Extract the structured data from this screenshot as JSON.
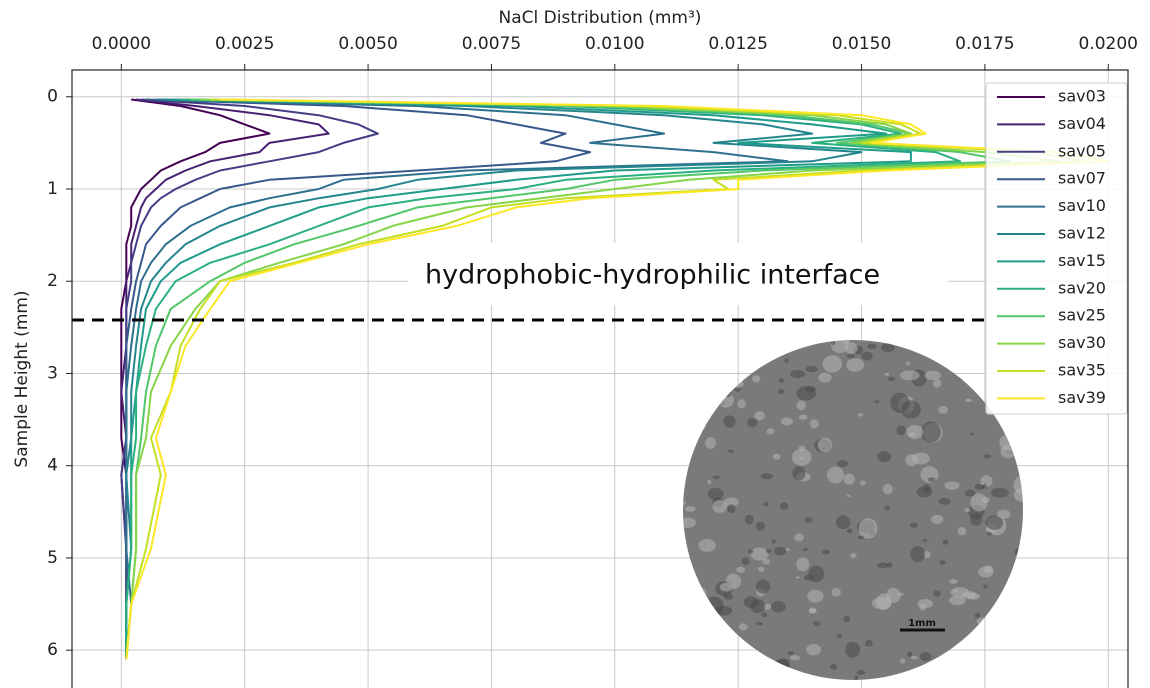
{
  "chart_data": {
    "type": "line",
    "title": "NaCl Distribution (mm³)",
    "y_label": "Sample Height (mm)",
    "y": [
      0.03,
      0.1,
      0.2,
      0.3,
      0.4,
      0.5,
      0.6,
      0.7,
      0.8,
      0.9,
      1.0,
      1.1,
      1.2,
      1.4,
      1.6,
      1.8,
      2.0,
      2.3,
      2.7,
      3.2,
      3.7,
      4.1,
      4.9,
      5.5,
      6.1
    ],
    "series": [
      {
        "name": "sav03",
        "color": "#440154",
        "values": [
          0.0002,
          0.0012,
          0.002,
          0.0025,
          0.003,
          0.002,
          0.0017,
          0.0012,
          0.0008,
          0.0006,
          0.0004,
          0.0003,
          0.0002,
          0.0002,
          0.0001,
          0.0001,
          0.0001,
          0.0,
          0.0,
          0.0,
          0.0,
          0.0001,
          0.0001,
          0.0001,
          0.0001
        ]
      },
      {
        "name": "sav04",
        "color": "#482173",
        "values": [
          0.0003,
          0.0015,
          0.003,
          0.004,
          0.0042,
          0.003,
          0.0028,
          0.0018,
          0.0013,
          0.0009,
          0.0007,
          0.0005,
          0.0004,
          0.0003,
          0.0002,
          0.0002,
          0.0001,
          0.0001,
          0.0001,
          0.0,
          0.0001,
          0.0,
          0.0001,
          0.0001,
          0.0001
        ]
      },
      {
        "name": "sav05",
        "color": "#433e85",
        "values": [
          0.0004,
          0.0025,
          0.004,
          0.0048,
          0.0052,
          0.0045,
          0.004,
          0.003,
          0.002,
          0.0015,
          0.0011,
          0.0008,
          0.0006,
          0.0004,
          0.0003,
          0.0002,
          0.0002,
          0.0001,
          0.0001,
          0.0001,
          0.0001,
          0.0,
          0.0001,
          0.0001,
          0.0001
        ]
      },
      {
        "name": "sav07",
        "color": "#38588c",
        "values": [
          0.0005,
          0.0045,
          0.007,
          0.008,
          0.009,
          0.0085,
          0.0095,
          0.0088,
          0.006,
          0.003,
          0.002,
          0.0016,
          0.0012,
          0.0008,
          0.0005,
          0.0004,
          0.0003,
          0.0002,
          0.0001,
          0.0001,
          0.0001,
          0.0001,
          0.0001,
          0.0001,
          0.0001
        ]
      },
      {
        "name": "sav10",
        "color": "#2d708e",
        "values": [
          0.0007,
          0.006,
          0.009,
          0.01,
          0.011,
          0.0095,
          0.012,
          0.0135,
          0.007,
          0.0045,
          0.004,
          0.003,
          0.0022,
          0.0014,
          0.0009,
          0.0006,
          0.0004,
          0.0003,
          0.0002,
          0.0001,
          0.0001,
          0.0001,
          0.0001,
          0.0002,
          0.0001
        ]
      },
      {
        "name": "sav12",
        "color": "#25858e",
        "values": [
          0.0008,
          0.007,
          0.011,
          0.013,
          0.014,
          0.012,
          0.015,
          0.014,
          0.008,
          0.006,
          0.0052,
          0.004,
          0.003,
          0.002,
          0.0013,
          0.0009,
          0.0006,
          0.0004,
          0.0003,
          0.0002,
          0.0002,
          0.0001,
          0.0002,
          0.0001,
          0.0001
        ]
      },
      {
        "name": "sav15",
        "color": "#1e9b8a",
        "values": [
          0.001,
          0.008,
          0.012,
          0.014,
          0.0155,
          0.0125,
          0.016,
          0.016,
          0.01,
          0.008,
          0.0065,
          0.005,
          0.004,
          0.003,
          0.002,
          0.0012,
          0.0008,
          0.0005,
          0.0004,
          0.0003,
          0.0002,
          0.0002,
          0.0002,
          0.0001,
          0.0001
        ]
      },
      {
        "name": "sav20",
        "color": "#2ab07f",
        "values": [
          0.0012,
          0.009,
          0.013,
          0.015,
          0.0158,
          0.014,
          0.0165,
          0.017,
          0.012,
          0.009,
          0.008,
          0.0062,
          0.005,
          0.004,
          0.003,
          0.0018,
          0.0011,
          0.0007,
          0.0005,
          0.0003,
          0.0003,
          0.0002,
          0.0002,
          0.0001,
          0.0001
        ]
      },
      {
        "name": "sav25",
        "color": "#52c569",
        "values": [
          0.0014,
          0.0095,
          0.0135,
          0.0152,
          0.016,
          0.0145,
          0.017,
          0.018,
          0.013,
          0.01,
          0.009,
          0.0075,
          0.006,
          0.0048,
          0.0035,
          0.0025,
          0.0018,
          0.001,
          0.0007,
          0.0005,
          0.0004,
          0.0003,
          0.0003,
          0.0002,
          0.0001
        ]
      },
      {
        "name": "sav30",
        "color": "#86d549",
        "values": [
          0.0016,
          0.01,
          0.014,
          0.0155,
          0.016,
          0.0148,
          0.0175,
          0.019,
          0.014,
          0.0115,
          0.01,
          0.0085,
          0.007,
          0.0055,
          0.0045,
          0.0032,
          0.002,
          0.0015,
          0.001,
          0.0006,
          0.0005,
          0.0003,
          0.0003,
          0.0002,
          0.0001
        ]
      },
      {
        "name": "sav35",
        "color": "#c2df23",
        "values": [
          0.0018,
          0.0105,
          0.0145,
          0.0158,
          0.0162,
          0.015,
          0.0185,
          0.0195,
          0.015,
          0.012,
          0.0123,
          0.009,
          0.0075,
          0.0065,
          0.0048,
          0.0035,
          0.002,
          0.0016,
          0.0012,
          0.001,
          0.0006,
          0.0008,
          0.0005,
          0.0002,
          0.0001
        ]
      },
      {
        "name": "sav39",
        "color": "#fde725",
        "values": [
          0.002,
          0.011,
          0.015,
          0.016,
          0.0163,
          0.0152,
          0.019,
          0.02,
          0.0155,
          0.0125,
          0.0125,
          0.0095,
          0.008,
          0.0068,
          0.005,
          0.0036,
          0.0022,
          0.0018,
          0.0013,
          0.001,
          0.0007,
          0.0009,
          0.0006,
          0.0002,
          0.0001
        ]
      }
    ],
    "xlim": [
      -0.001,
      0.0204
    ],
    "xticks": [
      {
        "value": 0,
        "label": "0.0000"
      },
      {
        "value": 0.0025,
        "label": "0.0025"
      },
      {
        "value": 0.005,
        "label": "0.0050"
      },
      {
        "value": 0.0075,
        "label": "0.0075"
      },
      {
        "value": 0.01,
        "label": "0.0100"
      },
      {
        "value": 0.0125,
        "label": "0.0125"
      },
      {
        "value": 0.015,
        "label": "0.0150"
      },
      {
        "value": 0.0175,
        "label": "0.0175"
      },
      {
        "value": 0.02,
        "label": "0.0200"
      }
    ],
    "ylim": [
      -0.29,
      6.41
    ],
    "y_inverted": true,
    "yticks": [
      0,
      1,
      2,
      3,
      4,
      5,
      6
    ],
    "grid": true,
    "legend": "upper right",
    "annotation": {
      "text": "hydrophobic-hydrophilic interface",
      "y": 2.42
    },
    "inset": {
      "scale_label": "1mm"
    }
  }
}
